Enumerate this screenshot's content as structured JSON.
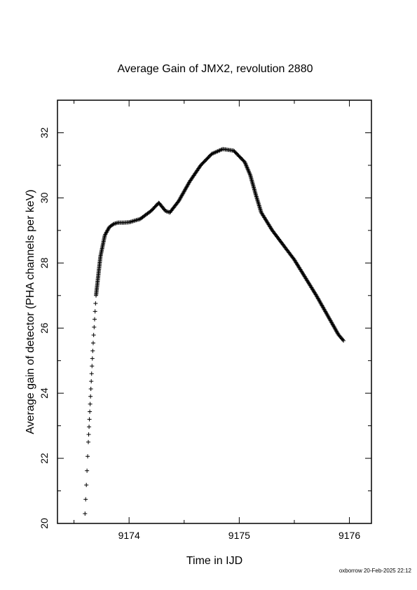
{
  "chart_data": {
    "type": "scatter",
    "title": "Average Gain of JMX2, revolution 2880",
    "xlabel": "Time in IJD",
    "ylabel": "Average gain of detector (PHA channels per keV)",
    "xlim": [
      9173.35,
      9176.2
    ],
    "ylim": [
      20,
      33
    ],
    "xticks": [
      "9174",
      "9175",
      "9176"
    ],
    "yticks": [
      "20",
      "22",
      "24",
      "26",
      "28",
      "30",
      "32"
    ],
    "marker": "+",
    "color": "#000000",
    "grid": false,
    "series_keypoints": {
      "x": [
        9173.6,
        9173.63,
        9173.67,
        9173.7,
        9173.74,
        9173.78,
        9173.82,
        9173.86,
        9173.9,
        9173.95,
        9174.0,
        9174.1,
        9174.2,
        9174.27,
        9174.33,
        9174.37,
        9174.45,
        9174.55,
        9174.65,
        9174.75,
        9174.85,
        9174.95,
        9175.05,
        9175.1,
        9175.15,
        9175.2,
        9175.3,
        9175.5,
        9175.7,
        9175.9,
        9175.95
      ],
      "y": [
        20.3,
        22.5,
        25.3,
        27.0,
        28.2,
        28.85,
        29.1,
        29.2,
        29.24,
        29.24,
        29.25,
        29.35,
        29.6,
        29.85,
        29.6,
        29.55,
        29.9,
        30.5,
        31.0,
        31.35,
        31.5,
        31.45,
        31.1,
        30.7,
        30.1,
        29.55,
        29.0,
        28.1,
        27.0,
        25.8,
        25.6
      ]
    }
  },
  "footer": {
    "text": "oxborrow 20-Feb-2025 22:12"
  }
}
